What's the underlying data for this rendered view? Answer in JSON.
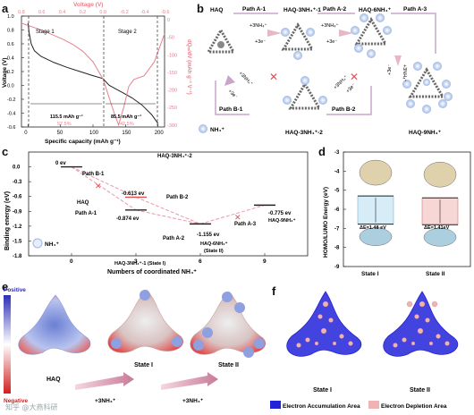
{
  "figure": {
    "panel_labels": [
      "a",
      "b",
      "c",
      "d",
      "e",
      "f"
    ],
    "watermark": "知乎 @大燕科研"
  },
  "panel_a": {
    "top_axis_title": "Voltage (V)",
    "left_axis_title": "Voltage (V)",
    "bottom_axis_title": "Specific capacity (mAh g⁻¹)",
    "right_axis_title": "dQₘ/dV (mAh g⁻¹ V⁻¹)",
    "stage1": "Stage 1",
    "stage2": "Stage 2",
    "cap1": "115.5 mAh g⁻¹",
    "pct1": "57.5%",
    "cap2": "85.5 mAh g⁻¹",
    "pct2": "42.5%",
    "colors": {
      "black": "#222222",
      "pink": "#e8818f"
    }
  },
  "panel_b": {
    "haq": "HAQ",
    "haq3_1": "HAQ-3NH₄⁺-1",
    "haq6": "HAQ-6NH₄⁺",
    "haq3_2": "HAQ-3NH₄⁺-2",
    "haq9": "HAQ-9NH₄⁺",
    "path_a1": "Path A-1",
    "path_a2": "Path A-2",
    "path_a3": "Path A-3",
    "path_b1": "Path B-1",
    "path_b2": "Path B-2",
    "plus3nh4": "+3NH₄⁺",
    "plus3e": "+3e⁻",
    "legend": "NH₄⁺"
  },
  "panel_c": {
    "y_title": "Binding energy (eV)",
    "x_title": "Numbers of coordinated NH₄⁺",
    "e0": "0 ev",
    "e_b1": "-0.613 ev",
    "e_a1": "-0.874 ev",
    "e_a2": "-1.155 ev",
    "e_a3": "-0.775 ev",
    "haq": "HAQ",
    "haq3_2": "HAQ-3NH₄⁺-2",
    "haq3_1": "HAQ-3NH₄⁺-1 (State I)",
    "haq6": "HAQ-6NH₄⁺",
    "state2": "(State II)",
    "haq9": "HAQ-9NH₄⁺",
    "path_a1": "Path A-1",
    "path_a2": "Path A-2",
    "path_a3": "Path A-3",
    "path_b1": "Path B-1",
    "path_b2": "Path B-2",
    "legend": "NH₄⁺"
  },
  "panel_d": {
    "y_title": "HOMO/LUMO Energy (eV)",
    "gap1": "ΔE=1.48 eV",
    "gap2": "ΔE=1.41eV",
    "state1": "State I",
    "state2": "State II"
  },
  "panel_e": {
    "positive": "Positive",
    "negative": "Negative",
    "haq": "HAQ",
    "state1": "State I",
    "state2": "State II",
    "step": "+3NH₄⁺"
  },
  "panel_f": {
    "state1": "State I",
    "state2": "State II",
    "accumulation": "Electron Accumulation Area",
    "depletion": "Electron Depletion Area",
    "colors": {
      "accumulation": "#2323d6",
      "depletion": "#f0b3b3"
    }
  },
  "chart_data": [
    {
      "id": "a",
      "type": "line",
      "xlabel": "Specific capacity (mAh g⁻¹)",
      "ylabel": "Voltage (V)",
      "x2label": "Voltage (V)",
      "y2label": "dQₘ/dV (mAh g⁻¹ V⁻¹)",
      "xlim": [
        -10,
        210
      ],
      "ylim": [
        -0.6,
        1.0
      ],
      "x_ticks": [
        0,
        50,
        100,
        150,
        200
      ],
      "y_ticks": [
        -0.6,
        -0.4,
        -0.2,
        0.0,
        0.2,
        0.4,
        0.6,
        0.8,
        1.0
      ],
      "x2_ticks": [
        0.8,
        0.6,
        0.4,
        0.2,
        0.0,
        -0.2,
        -0.4,
        -0.6
      ],
      "y2_ticks": [
        0,
        -50,
        -100,
        -150,
        -200,
        -250,
        -300
      ],
      "series": [
        {
          "x": [
            0,
            2,
            5,
            10,
            20,
            40,
            60,
            80,
            100,
            115,
            125,
            135,
            145,
            160,
            175,
            190,
            200
          ],
          "y": [
            0.9,
            0.75,
            0.6,
            0.5,
            0.42,
            0.33,
            0.26,
            0.2,
            0.14,
            0.1,
            0.0,
            -0.05,
            -0.1,
            -0.18,
            -0.28,
            -0.42,
            -0.55
          ]
        }
      ],
      "series2": [
        {
          "v": [
            0.8,
            0.6,
            0.4,
            0.3,
            0.2,
            0.1,
            0.0,
            -0.1,
            -0.15,
            -0.2,
            -0.25,
            -0.3,
            -0.4,
            -0.5,
            -0.6
          ],
          "dq": [
            -10,
            -30,
            -55,
            -70,
            -90,
            -120,
            -170,
            -260,
            -300,
            -250,
            -190,
            -170,
            -160,
            -120,
            -40
          ]
        }
      ]
    },
    {
      "id": "c",
      "type": "line",
      "xlabel": "Numbers of coordinated NH₄⁺",
      "ylabel": "Binding energy (eV)",
      "xlim": [
        -2,
        11
      ],
      "ylim": [
        -1.8,
        0.3
      ],
      "x_ticks": [
        0,
        3,
        6,
        9
      ],
      "y_ticks": [
        0.0,
        -0.3,
        -0.6,
        -0.9,
        -1.2,
        -1.5,
        -1.8
      ],
      "points": [
        {
          "x": 0,
          "y": 0.0
        },
        {
          "x": 3,
          "y": -0.613
        },
        {
          "x": 3,
          "y": -0.874
        },
        {
          "x": 6,
          "y": -1.155
        },
        {
          "x": 9,
          "y": -0.775
        }
      ]
    },
    {
      "id": "d",
      "type": "bar",
      "ylabel": "HOMO/LUMO Energy (eV)",
      "ylim": [
        -9,
        -3
      ],
      "y_ticks": [
        -3,
        -4,
        -5,
        -6,
        -7,
        -8,
        -9
      ],
      "categories": [
        "State I",
        "State II"
      ],
      "lumo": [
        -5.3,
        -5.4
      ],
      "homo": [
        -6.78,
        -6.81
      ]
    }
  ]
}
